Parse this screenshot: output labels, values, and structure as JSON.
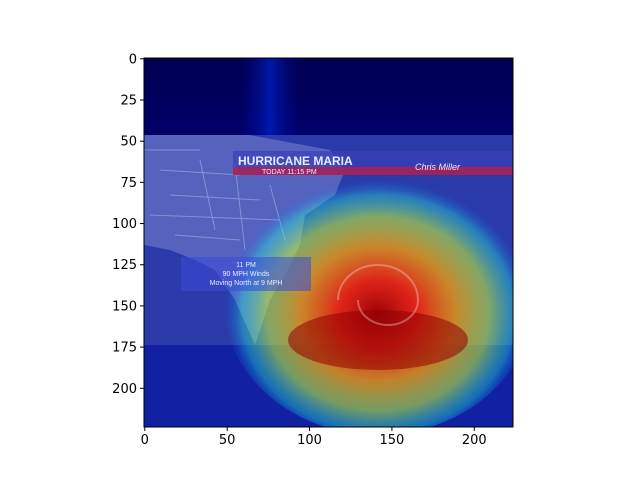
{
  "chart_data": {
    "type": "heatmap",
    "title": "",
    "xlabel": "",
    "ylabel": "",
    "xlim": [
      0,
      224
    ],
    "ylim": [
      224,
      0
    ],
    "x_ticks": [
      0,
      50,
      100,
      150,
      200
    ],
    "y_ticks": [
      0,
      25,
      50,
      75,
      100,
      125,
      150,
      175,
      200
    ],
    "x_tick_labels": [
      "0",
      "50",
      "100",
      "150",
      "200"
    ],
    "y_tick_labels": [
      "0",
      "25",
      "50",
      "75",
      "100",
      "125",
      "150",
      "175",
      "200"
    ],
    "colormap": "jet",
    "peak": {
      "x": 143,
      "y": 175,
      "value": 1.0
    },
    "grid": false,
    "background_image": {
      "description_visible_text": true,
      "headline": "HURRICANE MARIA",
      "subheadline": "TODAY 11:15 PM",
      "info_time": "11 PM",
      "info_wind": "90 MPH Winds",
      "info_motion": "Moving North at 9 MPH",
      "signature": "Chris Miller"
    }
  },
  "colors": {
    "map_ocean": "#3a4fb0",
    "land": "#7b86c8",
    "jet_low": "#00007f",
    "jet_mid": "#00ffff",
    "jet_high": "#ff0000",
    "banner": "#c81a3a"
  }
}
